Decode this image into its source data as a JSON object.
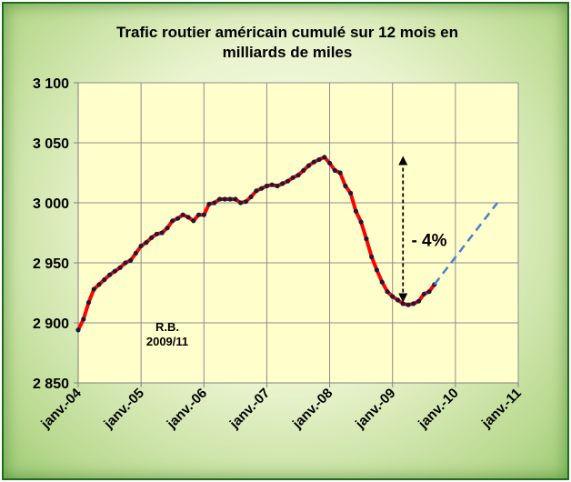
{
  "chart_data": {
    "type": "line",
    "title_line1": "Trafic routier américain cumulé sur 12 mois en",
    "title_line2": "milliards de miles",
    "xlabel": "",
    "ylabel": "",
    "ylim": [
      2850,
      3100
    ],
    "yticks": [
      2850,
      2900,
      2950,
      3000,
      3050,
      3100
    ],
    "ytick_labels": [
      "2 850",
      "2 900",
      "2 950",
      "3 000",
      "3 050",
      "3 100"
    ],
    "xlim": [
      "2004-01",
      "2011-01"
    ],
    "xticks": [
      "2004-01",
      "2005-01",
      "2006-01",
      "2007-01",
      "2008-01",
      "2009-01",
      "2010-01",
      "2011-01"
    ],
    "xtick_labels": [
      "janv.-04",
      "janv.-05",
      "janv.-06",
      "janv.-07",
      "janv.-08",
      "janv.-09",
      "janv.-10",
      "janv.-11"
    ],
    "grid": true,
    "series": [
      {
        "color": "#ff0000",
        "marker_color": "#1a1a3a",
        "x": [
          "2004-01",
          "2004-02",
          "2004-03",
          "2004-04",
          "2004-05",
          "2004-06",
          "2004-07",
          "2004-08",
          "2004-09",
          "2004-10",
          "2004-11",
          "2004-12",
          "2005-01",
          "2005-02",
          "2005-03",
          "2005-04",
          "2005-05",
          "2005-06",
          "2005-07",
          "2005-08",
          "2005-09",
          "2005-10",
          "2005-11",
          "2005-12",
          "2006-01",
          "2006-02",
          "2006-03",
          "2006-04",
          "2006-05",
          "2006-06",
          "2006-07",
          "2006-08",
          "2006-09",
          "2006-10",
          "2006-11",
          "2006-12",
          "2007-01",
          "2007-02",
          "2007-03",
          "2007-04",
          "2007-05",
          "2007-06",
          "2007-07",
          "2007-08",
          "2007-09",
          "2007-10",
          "2007-11",
          "2007-12",
          "2008-01",
          "2008-02",
          "2008-03",
          "2008-04",
          "2008-05",
          "2008-06",
          "2008-07",
          "2008-08",
          "2008-09",
          "2008-10",
          "2008-11",
          "2008-12",
          "2009-01",
          "2009-02",
          "2009-03",
          "2009-04",
          "2009-05",
          "2009-06",
          "2009-07",
          "2009-08",
          "2009-09"
        ],
        "values": [
          2894,
          2903,
          2917,
          2928,
          2932,
          2936,
          2940,
          2943,
          2946,
          2950,
          2952,
          2958,
          2964,
          2967,
          2971,
          2974,
          2975,
          2979,
          2985,
          2987,
          2990,
          2988,
          2985,
          2990,
          2990,
          2999,
          3000,
          3003,
          3003,
          3003,
          3003,
          3000,
          3001,
          3005,
          3010,
          3012,
          3014,
          3015,
          3014,
          3016,
          3018,
          3021,
          3023,
          3027,
          3031,
          3034,
          3036,
          3038,
          3033,
          3027,
          3025,
          3014,
          3008,
          2993,
          2984,
          2970,
          2955,
          2944,
          2934,
          2926,
          2922,
          2919,
          2916,
          2915,
          2916,
          2918,
          2924,
          2926,
          2932
        ]
      },
      {
        "color": "#4a7ec8",
        "dashed": true,
        "x": [
          "2009-09",
          "2010-09"
        ],
        "values": [
          2932,
          3000
        ]
      }
    ],
    "annotations": [
      {
        "text": "R.B.",
        "x": "2005-06",
        "y": 2893
      },
      {
        "text": "2009/11",
        "x": "2005-06",
        "y": 2881
      },
      {
        "text": "- 4%",
        "x": "2009-08",
        "y": 2964
      },
      {
        "type": "double-arrow",
        "x": "2009-03",
        "y_from": 3039,
        "y_to": 2917
      }
    ]
  }
}
